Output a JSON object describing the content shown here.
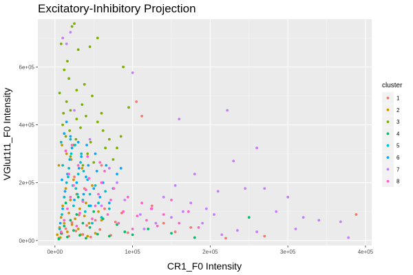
{
  "chart_data": {
    "type": "scatter",
    "title": "Excitatory-Inhibitory Projection",
    "xlabel": "CR1_F0 Intensity",
    "ylabel": "VGlut1t1_F0 Intensity",
    "xlim": [
      -22000,
      408000
    ],
    "ylim": [
      -17000,
      765000
    ],
    "x_ticks": [
      0,
      100000,
      200000,
      300000,
      400000
    ],
    "x_tick_labels": [
      "0e+00",
      "1e+05",
      "2e+05",
      "3e+05",
      "4e+05"
    ],
    "y_ticks": [
      0,
      200000,
      400000,
      600000
    ],
    "y_tick_labels": [
      "0e+00",
      "2e+05",
      "4e+05",
      "6e+05"
    ],
    "grid": true,
    "background": "#ebebeb",
    "legend": {
      "title": "cluster",
      "placement": "right"
    },
    "series": [
      {
        "name": "1",
        "color": "#F8766D",
        "points": [
          [
            5000,
            9000
          ],
          [
            9000,
            24000
          ],
          [
            14000,
            41000
          ],
          [
            18000,
            15000
          ],
          [
            22000,
            62000
          ],
          [
            27000,
            33000
          ],
          [
            31000,
            88000
          ],
          [
            36000,
            21000
          ],
          [
            41000,
            52000
          ],
          [
            46000,
            12000
          ],
          [
            52000,
            70000
          ],
          [
            58000,
            38000
          ],
          [
            64000,
            110000
          ],
          [
            72000,
            18000
          ],
          [
            78000,
            64000
          ],
          [
            86000,
            95000
          ],
          [
            94000,
            27000
          ],
          [
            105000,
            480000
          ],
          [
            112000,
            430000
          ],
          [
            125000,
            120000
          ],
          [
            140000,
            60000
          ],
          [
            155000,
            30000
          ],
          [
            175000,
            45000
          ],
          [
            220000,
            8000
          ],
          [
            270000,
            15000
          ],
          [
            388000,
            90000
          ],
          [
            12000,
            150000
          ],
          [
            25000,
            220000
          ],
          [
            38000,
            180000
          ],
          [
            60000,
            260000
          ]
        ]
      },
      {
        "name": "2",
        "color": "#CD9600",
        "points": [
          [
            3000,
            20000
          ],
          [
            6000,
            45000
          ],
          [
            8000,
            80000
          ],
          [
            10000,
            120000
          ],
          [
            12000,
            60000
          ],
          [
            14000,
            180000
          ],
          [
            16000,
            30000
          ],
          [
            18000,
            95000
          ],
          [
            20000,
            140000
          ],
          [
            22000,
            55000
          ],
          [
            24000,
            210000
          ],
          [
            26000,
            75000
          ],
          [
            28000,
            160000
          ],
          [
            30000,
            40000
          ],
          [
            32000,
            110000
          ],
          [
            35000,
            250000
          ],
          [
            38000,
            85000
          ],
          [
            40000,
            130000
          ],
          [
            44000,
            60000
          ],
          [
            48000,
            190000
          ],
          [
            52000,
            25000
          ],
          [
            56000,
            100000
          ],
          [
            60000,
            70000
          ],
          [
            5000,
            260000
          ],
          [
            9000,
            330000
          ],
          [
            15000,
            300000
          ],
          [
            21000,
            280000
          ],
          [
            33000,
            20000
          ],
          [
            42000,
            15000
          ],
          [
            7000,
            10000
          ]
        ]
      },
      {
        "name": "3",
        "color": "#7CAE00",
        "points": [
          [
            12000,
            590000
          ],
          [
            18000,
            560000
          ],
          [
            22000,
            740000
          ],
          [
            25000,
            750000
          ],
          [
            8000,
            680000
          ],
          [
            30000,
            660000
          ],
          [
            45000,
            670000
          ],
          [
            55000,
            700000
          ],
          [
            88000,
            600000
          ],
          [
            15000,
            480000
          ],
          [
            20000,
            450000
          ],
          [
            28000,
            520000
          ],
          [
            35000,
            470000
          ],
          [
            40000,
            430000
          ],
          [
            48000,
            500000
          ],
          [
            55000,
            410000
          ],
          [
            62000,
            380000
          ],
          [
            70000,
            350000
          ],
          [
            80000,
            320000
          ],
          [
            95000,
            460000
          ],
          [
            10000,
            400000
          ],
          [
            14000,
            360000
          ],
          [
            24000,
            330000
          ],
          [
            33000,
            390000
          ],
          [
            42000,
            300000
          ],
          [
            50000,
            270000
          ],
          [
            60000,
            440000
          ],
          [
            20000,
            290000
          ],
          [
            6000,
            510000
          ],
          [
            38000,
            540000
          ],
          [
            28000,
            420000
          ],
          [
            16000,
            620000
          ],
          [
            65000,
            320000
          ],
          [
            75000,
            280000
          ],
          [
            85000,
            360000
          ],
          [
            11000,
            440000
          ],
          [
            19000,
            380000
          ],
          [
            27000,
            350000
          ],
          [
            36000,
            260000
          ],
          [
            46000,
            340000
          ]
        ]
      },
      {
        "name": "4",
        "color": "#00BE67",
        "points": [
          [
            5000,
            5000
          ],
          [
            8000,
            25000
          ],
          [
            12000,
            50000
          ],
          [
            16000,
            12000
          ],
          [
            20000,
            70000
          ],
          [
            24000,
            35000
          ],
          [
            28000,
            90000
          ],
          [
            32000,
            18000
          ],
          [
            36000,
            60000
          ],
          [
            40000,
            8000
          ],
          [
            45000,
            45000
          ],
          [
            50000,
            100000
          ],
          [
            55000,
            22000
          ],
          [
            62000,
            75000
          ],
          [
            70000,
            15000
          ],
          [
            80000,
            55000
          ],
          [
            90000,
            30000
          ],
          [
            100000,
            20000
          ],
          [
            120000,
            40000
          ],
          [
            150000,
            25000
          ],
          [
            180000,
            10000
          ],
          [
            250000,
            80000
          ],
          [
            14000,
            130000
          ],
          [
            30000,
            150000
          ],
          [
            44000,
            120000
          ]
        ]
      },
      {
        "name": "5",
        "color": "#00BFC4",
        "points": [
          [
            6000,
            40000
          ],
          [
            9000,
            90000
          ],
          [
            12000,
            150000
          ],
          [
            15000,
            200000
          ],
          [
            18000,
            250000
          ],
          [
            21000,
            300000
          ],
          [
            24000,
            120000
          ],
          [
            27000,
            180000
          ],
          [
            30000,
            230000
          ],
          [
            33000,
            270000
          ],
          [
            36000,
            140000
          ],
          [
            39000,
            100000
          ],
          [
            42000,
            210000
          ],
          [
            45000,
            160000
          ],
          [
            48000,
            60000
          ],
          [
            52000,
            190000
          ],
          [
            56000,
            130000
          ],
          [
            60000,
            80000
          ],
          [
            65000,
            170000
          ],
          [
            70000,
            110000
          ],
          [
            8000,
            340000
          ],
          [
            14000,
            310000
          ],
          [
            20000,
            350000
          ],
          [
            26000,
            330000
          ],
          [
            34000,
            300000
          ],
          [
            10000,
            260000
          ],
          [
            17000,
            220000
          ],
          [
            23000,
            190000
          ],
          [
            29000,
            160000
          ],
          [
            37000,
            240000
          ]
        ]
      },
      {
        "name": "6",
        "color": "#00A9FF",
        "points": [
          [
            7000,
            60000
          ],
          [
            10000,
            110000
          ],
          [
            13000,
            170000
          ],
          [
            16000,
            230000
          ],
          [
            19000,
            280000
          ],
          [
            22000,
            320000
          ],
          [
            25000,
            140000
          ],
          [
            28000,
            200000
          ],
          [
            31000,
            250000
          ],
          [
            34000,
            290000
          ],
          [
            37000,
            160000
          ],
          [
            40000,
            220000
          ],
          [
            43000,
            260000
          ],
          [
            46000,
            120000
          ],
          [
            50000,
            180000
          ],
          [
            54000,
            240000
          ],
          [
            58000,
            150000
          ],
          [
            62000,
            200000
          ],
          [
            66000,
            260000
          ],
          [
            70000,
            130000
          ],
          [
            75000,
            180000
          ],
          [
            80000,
            230000
          ],
          [
            12000,
            370000
          ],
          [
            20000,
            360000
          ],
          [
            30000,
            340000
          ],
          [
            15000,
            410000
          ],
          [
            41000,
            330000
          ],
          [
            52000,
            300000
          ],
          [
            85000,
            250000
          ],
          [
            9000,
            210000
          ]
        ]
      },
      {
        "name": "7",
        "color": "#C77CFF",
        "points": [
          [
            10000,
            700000
          ],
          [
            15000,
            680000
          ],
          [
            20000,
            720000
          ],
          [
            100000,
            580000
          ],
          [
            222000,
            450000
          ],
          [
            160000,
            420000
          ],
          [
            260000,
            320000
          ],
          [
            230000,
            275000
          ],
          [
            180000,
            230000
          ],
          [
            210000,
            170000
          ],
          [
            245000,
            180000
          ],
          [
            270000,
            180000
          ],
          [
            300000,
            150000
          ],
          [
            320000,
            80000
          ],
          [
            340000,
            70000
          ],
          [
            368000,
            65000
          ],
          [
            378000,
            10000
          ],
          [
            155000,
            190000
          ],
          [
            140000,
            150000
          ],
          [
            125000,
            110000
          ],
          [
            110000,
            90000
          ],
          [
            190000,
            60000
          ],
          [
            205000,
            90000
          ],
          [
            235000,
            35000
          ],
          [
            260000,
            30000
          ],
          [
            175000,
            130000
          ],
          [
            195000,
            110000
          ],
          [
            285000,
            100000
          ],
          [
            310000,
            40000
          ],
          [
            90000,
            140000
          ],
          [
            80000,
            200000
          ],
          [
            70000,
            250000
          ],
          [
            130000,
            60000
          ],
          [
            150000,
            80000
          ],
          [
            215000,
            20000
          ],
          [
            115000,
            40000
          ],
          [
            165000,
            100000
          ],
          [
            60000,
            120000
          ],
          [
            45000,
            350000
          ],
          [
            25000,
            450000
          ]
        ]
      },
      {
        "name": "8",
        "color": "#FF61CC",
        "points": [
          [
            8000,
            30000
          ],
          [
            12000,
            70000
          ],
          [
            16000,
            110000
          ],
          [
            20000,
            150000
          ],
          [
            24000,
            190000
          ],
          [
            28000,
            50000
          ],
          [
            32000,
            95000
          ],
          [
            36000,
            135000
          ],
          [
            40000,
            175000
          ],
          [
            44000,
            215000
          ],
          [
            48000,
            75000
          ],
          [
            52000,
            120000
          ],
          [
            56000,
            160000
          ],
          [
            60000,
            200000
          ],
          [
            64000,
            240000
          ],
          [
            68000,
            90000
          ],
          [
            72000,
            140000
          ],
          [
            76000,
            180000
          ],
          [
            82000,
            60000
          ],
          [
            88000,
            100000
          ],
          [
            94000,
            150000
          ],
          [
            100000,
            40000
          ],
          [
            106000,
            85000
          ],
          [
            112000,
            130000
          ],
          [
            118000,
            70000
          ],
          [
            124000,
            110000
          ],
          [
            132000,
            50000
          ],
          [
            140000,
            90000
          ],
          [
            150000,
            140000
          ],
          [
            160000,
            60000
          ],
          [
            172000,
            100000
          ],
          [
            185000,
            45000
          ],
          [
            30000,
            260000
          ],
          [
            18000,
            230000
          ],
          [
            42000,
            290000
          ],
          [
            58000,
            270000
          ],
          [
            14000,
            310000
          ],
          [
            22000,
            330000
          ]
        ]
      }
    ]
  }
}
